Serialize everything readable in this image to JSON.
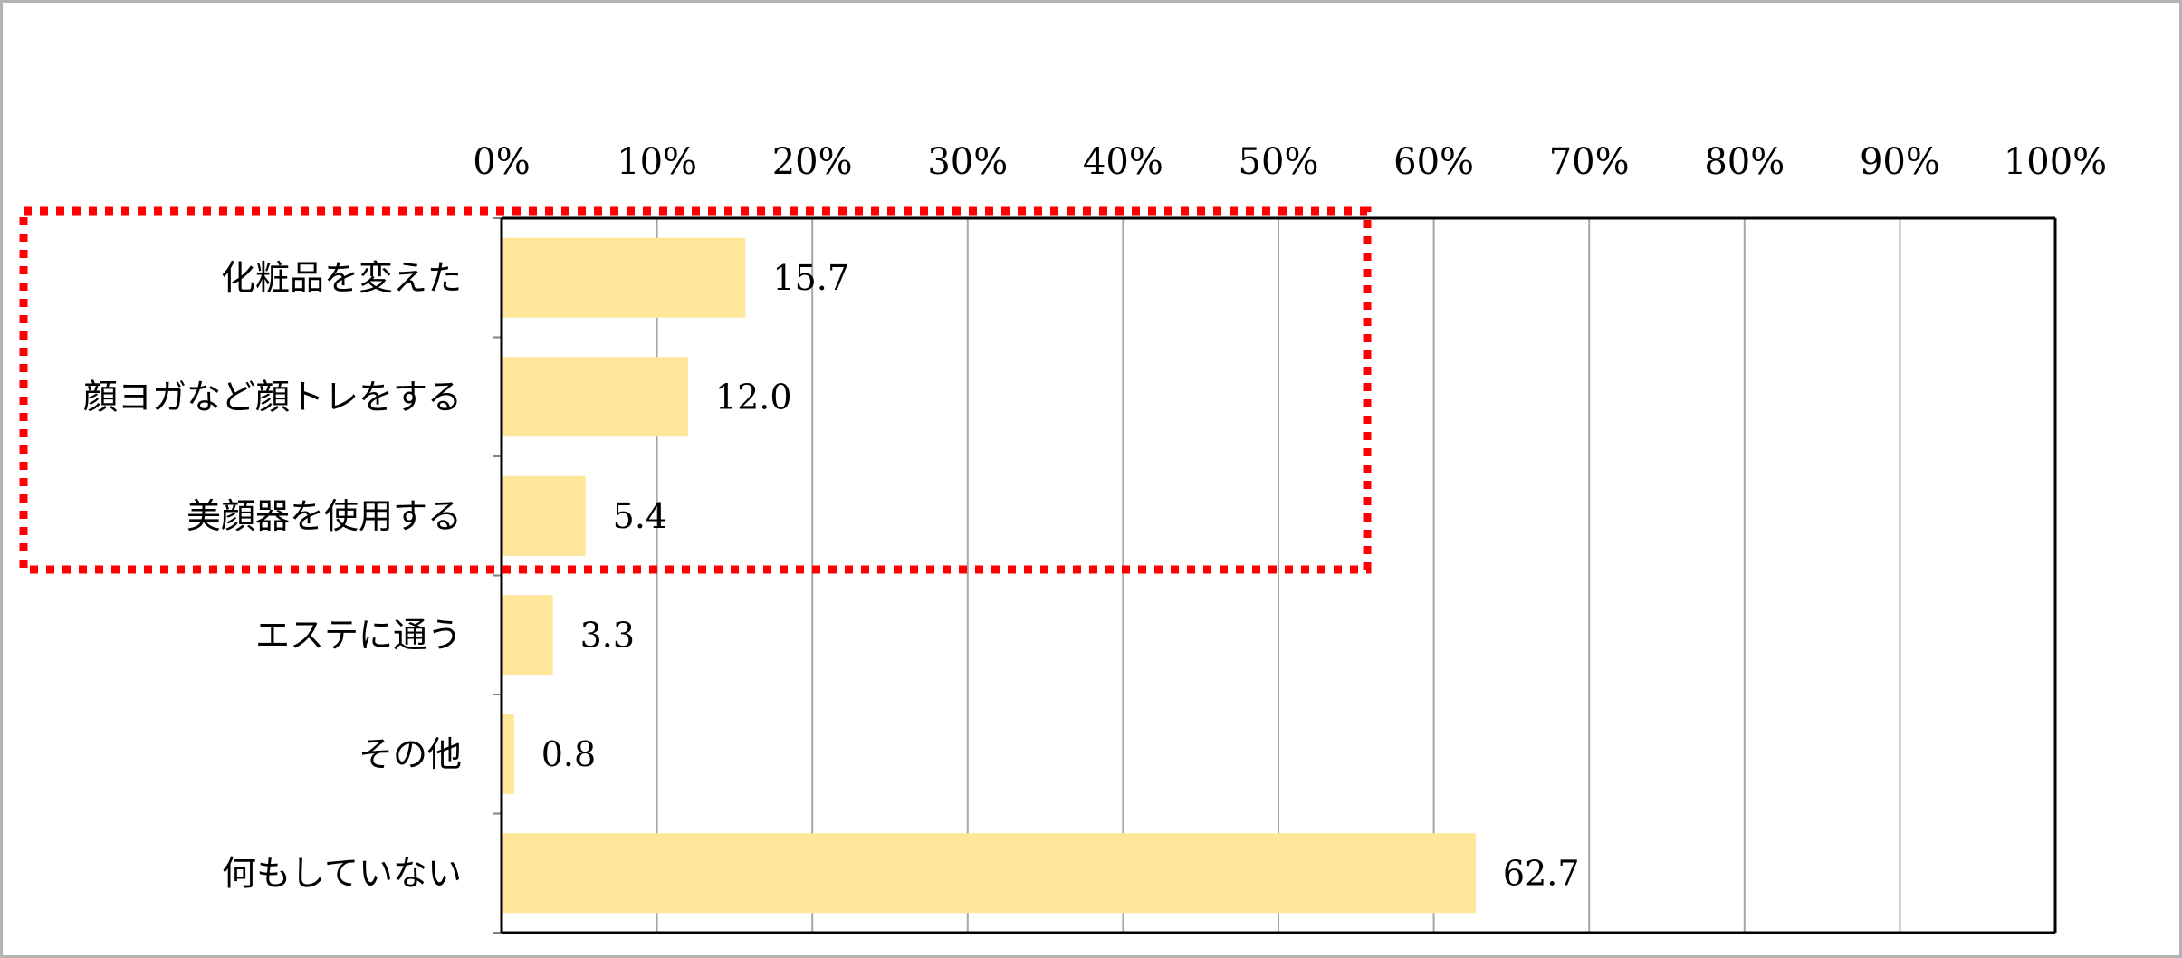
{
  "chart_data": {
    "type": "bar",
    "orientation": "horizontal",
    "x_axis_position": "top",
    "xlim": [
      0,
      100
    ],
    "x_ticks": [
      "0%",
      "10%",
      "20%",
      "30%",
      "40%",
      "50%",
      "60%",
      "70%",
      "80%",
      "90%",
      "100%"
    ],
    "categories": [
      "化粧品を変えた",
      "顔ヨガなど顔トレをする",
      "美顔器を使用する",
      "エステに通う",
      "その他",
      "何もしていない"
    ],
    "values": [
      15.7,
      12.0,
      5.4,
      3.3,
      0.8,
      62.7
    ],
    "data_labels": [
      "15.7",
      "12.0",
      "5.4",
      "3.3",
      "0.8",
      "62.7"
    ],
    "grid": true,
    "bar_color": "#FFE699",
    "highlight": {
      "categories": [
        "化粧品を変えた",
        "顔ヨガなど顔トレをする",
        "美顔器を使用する"
      ],
      "color": "#FF0000",
      "style": "dotted"
    }
  }
}
